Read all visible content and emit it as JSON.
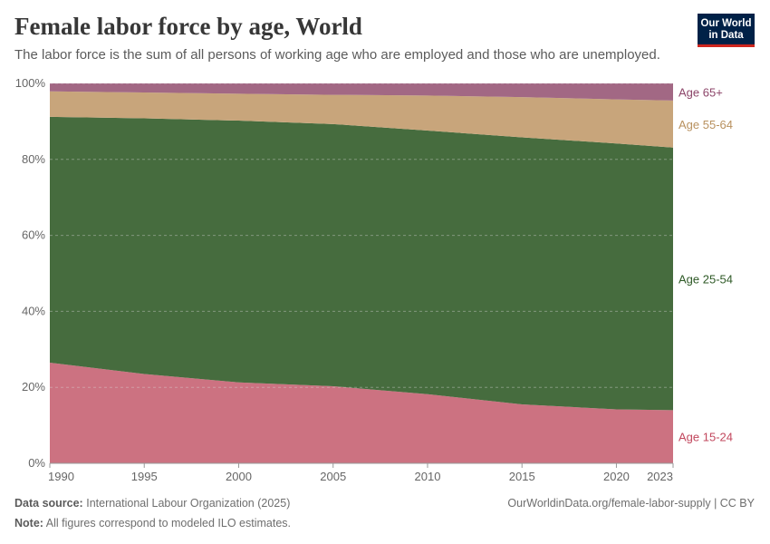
{
  "header": {
    "title": "Female labor force by age, World",
    "subtitle": "The labor force is the sum of all persons of working age who are employed and those who are unemployed.",
    "logo": "Our World in Data"
  },
  "footer": {
    "source_label": "Data source:",
    "source": "International Labour Organization (2025)",
    "note_label": "Note:",
    "note": "All figures correspond to modeled ILO estimates.",
    "url": "OurWorldinData.org/female-labor-supply | CC BY"
  },
  "chart_data": {
    "type": "area",
    "stacked": "relative",
    "x": [
      1990,
      1995,
      2000,
      2005,
      2010,
      2015,
      2020,
      2023
    ],
    "xticks": [
      "1990",
      "1995",
      "2000",
      "2005",
      "2010",
      "2015",
      "2020",
      "2023"
    ],
    "yticks": [
      "0%",
      "20%",
      "40%",
      "60%",
      "80%",
      "100%"
    ],
    "ylim": [
      0,
      100
    ],
    "grid": "horizontal",
    "legend": "right, inline labels",
    "series": [
      {
        "name": "Age 15-24",
        "color": "#cc7281",
        "label_color": "#c2485e",
        "values": [
          26.5,
          23.5,
          21.3,
          20.3,
          18.2,
          15.5,
          14.2,
          14.0
        ]
      },
      {
        "name": "Age 25-54",
        "color": "#466c3e",
        "label_color": "#2f5a27",
        "values": [
          64.7,
          67.3,
          68.9,
          69.0,
          69.4,
          70.3,
          70.0,
          69.1
        ]
      },
      {
        "name": "Age 55-64",
        "color": "#c8a57b",
        "label_color": "#b8915f",
        "values": [
          6.7,
          6.8,
          7.1,
          7.7,
          9.2,
          10.6,
          11.6,
          12.4
        ]
      },
      {
        "name": "Age 65+",
        "color": "#a26884",
        "label_color": "#8c4569",
        "values": [
          2.1,
          2.4,
          2.7,
          3.0,
          3.2,
          3.6,
          4.2,
          4.5
        ]
      }
    ]
  }
}
